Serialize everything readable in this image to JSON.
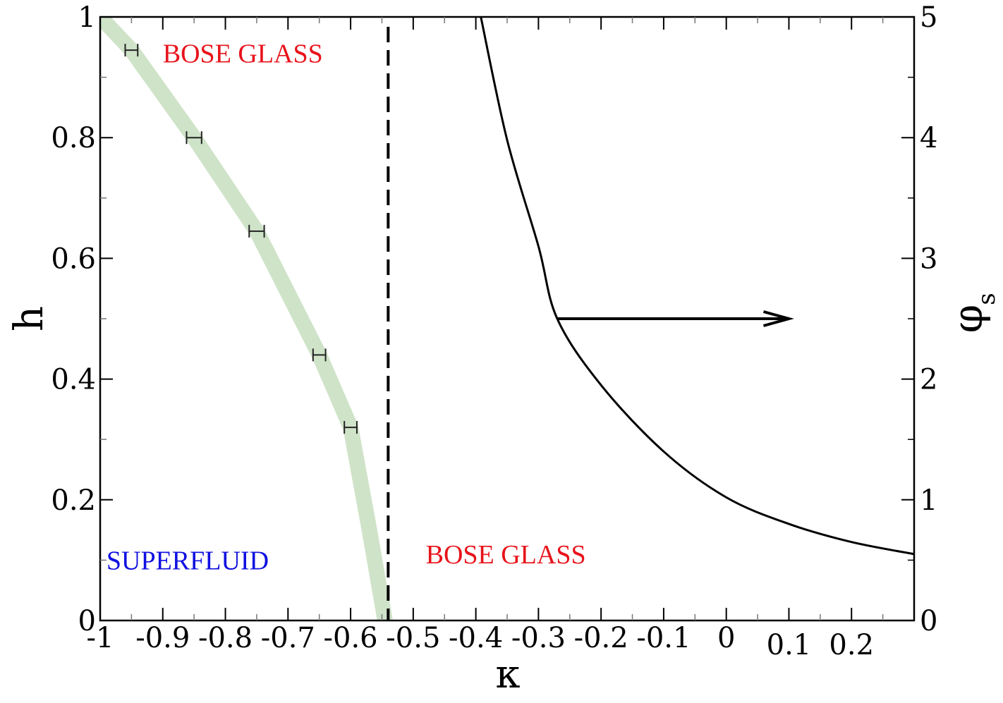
{
  "chart_data": {
    "type": "line",
    "title": "",
    "xlabel": "κ",
    "ylabel_left": "h",
    "ylabel_right": "φ",
    "ylabel_right_subscript": "s",
    "xlim": [
      -1.0,
      0.3
    ],
    "ylim_left": [
      0,
      1
    ],
    "ylim_right": [
      0,
      5
    ],
    "grid": false,
    "x_ticks": [
      -1.0,
      -0.9,
      -0.8,
      -0.7,
      -0.6,
      -0.5,
      -0.4,
      -0.3,
      -0.2,
      -0.1,
      0.0,
      0.1,
      0.2
    ],
    "x_tick_labels": [
      "-1",
      "-0.9",
      "-0.8",
      "-0.7",
      "-0.6",
      "-0.5",
      "-0.4",
      "-0.3",
      "-0.2",
      "-0.1",
      "0",
      "0.1",
      "0.2"
    ],
    "y_left_ticks": [
      0,
      0.2,
      0.4,
      0.6,
      0.8,
      1
    ],
    "y_left_tick_labels": [
      "0",
      "0.2",
      "0.4",
      "0.6",
      "0.8",
      "1"
    ],
    "y_right_ticks": [
      0,
      1,
      2,
      3,
      4,
      5
    ],
    "y_right_tick_labels": [
      "0",
      "1",
      "2",
      "3",
      "4",
      "5"
    ],
    "phase_boundary": {
      "color": "#cfe3c8",
      "points": [
        [
          -1.0,
          1.0
        ],
        [
          -0.95,
          0.945
        ],
        [
          -0.85,
          0.8
        ],
        [
          -0.75,
          0.645
        ],
        [
          -0.65,
          0.44
        ],
        [
          -0.6,
          0.32
        ],
        [
          -0.57,
          0.15
        ],
        [
          -0.545,
          0.0
        ]
      ]
    },
    "error_points": [
      {
        "x": -0.95,
        "y": 0.945,
        "xerr": 0.01
      },
      {
        "x": -0.85,
        "y": 0.8,
        "xerr": 0.012
      },
      {
        "x": -0.75,
        "y": 0.645,
        "xerr": 0.012
      },
      {
        "x": -0.65,
        "y": 0.44,
        "xerr": 0.01
      },
      {
        "x": -0.6,
        "y": 0.32,
        "xerr": 0.01
      }
    ],
    "dashed_line": {
      "x": -0.54,
      "color": "#000000"
    },
    "phi_s_curve": {
      "axis": "right",
      "color": "#000000",
      "points": [
        [
          -0.392,
          5.0
        ],
        [
          -0.35,
          3.98
        ],
        [
          -0.3,
          3.1
        ],
        [
          -0.27,
          2.5
        ],
        [
          -0.2,
          1.95
        ],
        [
          -0.1,
          1.4
        ],
        [
          0.0,
          1.02
        ],
        [
          0.1,
          0.8
        ],
        [
          0.2,
          0.65
        ],
        [
          0.3,
          0.55
        ]
      ]
    },
    "arrow": {
      "from": [
        -0.27,
        2.5
      ],
      "to": [
        0.1,
        2.5
      ],
      "axis": "right"
    },
    "annotations": [
      {
        "text": "BOSE GLASS",
        "x": -0.9,
        "y": 0.94,
        "color": "#e8131b"
      },
      {
        "text": "SUPERFLUID",
        "x": -0.99,
        "y": 0.1,
        "color": "#1010e0"
      },
      {
        "text": "BOSE GLASS",
        "x": -0.48,
        "y": 0.11,
        "color": "#e8131b"
      }
    ]
  }
}
